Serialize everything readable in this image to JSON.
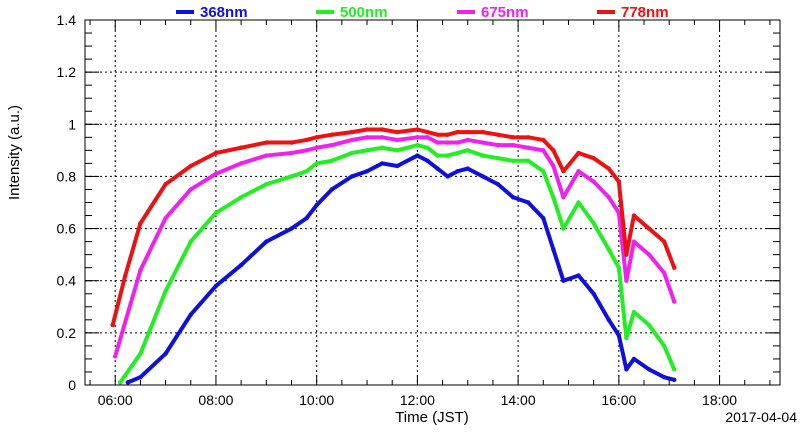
{
  "chart_data": {
    "type": "scatter",
    "xlabel": "Time (JST)",
    "ylabel": "Intensity (a.u.)",
    "date_label": "2017-04-04",
    "xlim": [
      5.4,
      19.2
    ],
    "ylim": [
      0,
      1.4
    ],
    "x_ticks": [
      "06:00",
      "08:00",
      "10:00",
      "12:00",
      "14:00",
      "16:00",
      "18:00"
    ],
    "y_ticks": [
      "0",
      "0.2",
      "0.4",
      "0.6",
      "0.8",
      "1",
      "1.2",
      "1.4"
    ],
    "grid": true,
    "legend_position": "top",
    "series": [
      {
        "name": "368nm",
        "color": "#1010dd",
        "x": [
          6.25,
          6.5,
          7.0,
          7.5,
          8.0,
          8.5,
          9.0,
          9.5,
          9.8,
          10.0,
          10.3,
          10.7,
          11.0,
          11.3,
          11.6,
          12.0,
          12.2,
          12.4,
          12.6,
          12.8,
          13.0,
          13.3,
          13.6,
          13.9,
          14.2,
          14.5,
          14.7,
          14.9,
          15.2,
          15.5,
          15.8,
          16.0,
          16.15,
          16.3,
          16.6,
          16.9,
          17.1
        ],
        "y": [
          0.01,
          0.03,
          0.12,
          0.27,
          0.38,
          0.46,
          0.55,
          0.6,
          0.64,
          0.69,
          0.75,
          0.8,
          0.82,
          0.85,
          0.84,
          0.88,
          0.86,
          0.83,
          0.8,
          0.82,
          0.83,
          0.8,
          0.77,
          0.72,
          0.7,
          0.64,
          0.52,
          0.4,
          0.42,
          0.35,
          0.25,
          0.19,
          0.06,
          0.1,
          0.06,
          0.03,
          0.02
        ]
      },
      {
        "name": "500nm",
        "color": "#22ee22",
        "x": [
          6.1,
          6.5,
          7.0,
          7.5,
          8.0,
          8.5,
          9.0,
          9.5,
          9.8,
          10.0,
          10.3,
          10.7,
          11.0,
          11.3,
          11.6,
          12.0,
          12.2,
          12.4,
          12.6,
          12.8,
          13.0,
          13.3,
          13.6,
          13.9,
          14.2,
          14.5,
          14.7,
          14.9,
          15.2,
          15.5,
          15.8,
          16.0,
          16.15,
          16.3,
          16.6,
          16.9,
          17.1
        ],
        "y": [
          0.01,
          0.12,
          0.36,
          0.55,
          0.66,
          0.72,
          0.77,
          0.8,
          0.82,
          0.85,
          0.86,
          0.89,
          0.9,
          0.91,
          0.9,
          0.92,
          0.91,
          0.88,
          0.88,
          0.89,
          0.9,
          0.88,
          0.87,
          0.86,
          0.86,
          0.82,
          0.72,
          0.6,
          0.7,
          0.62,
          0.52,
          0.45,
          0.18,
          0.28,
          0.23,
          0.15,
          0.06
        ]
      },
      {
        "name": "675nm",
        "color": "#ee22ee",
        "x": [
          6.0,
          6.5,
          7.0,
          7.5,
          8.0,
          8.5,
          9.0,
          9.5,
          9.8,
          10.0,
          10.3,
          10.7,
          11.0,
          11.3,
          11.6,
          12.0,
          12.2,
          12.4,
          12.6,
          12.8,
          13.0,
          13.3,
          13.6,
          13.9,
          14.2,
          14.5,
          14.7,
          14.9,
          15.2,
          15.5,
          15.8,
          16.0,
          16.15,
          16.3,
          16.6,
          16.9,
          17.1
        ],
        "y": [
          0.11,
          0.44,
          0.64,
          0.75,
          0.81,
          0.85,
          0.88,
          0.89,
          0.9,
          0.91,
          0.92,
          0.94,
          0.95,
          0.95,
          0.94,
          0.95,
          0.95,
          0.93,
          0.93,
          0.93,
          0.94,
          0.93,
          0.92,
          0.92,
          0.91,
          0.9,
          0.84,
          0.72,
          0.82,
          0.78,
          0.72,
          0.66,
          0.4,
          0.55,
          0.5,
          0.43,
          0.32
        ]
      },
      {
        "name": "778nm",
        "color": "#ee1111",
        "x": [
          5.95,
          6.2,
          6.5,
          7.0,
          7.5,
          8.0,
          8.5,
          9.0,
          9.5,
          9.8,
          10.0,
          10.3,
          10.7,
          11.0,
          11.3,
          11.6,
          12.0,
          12.2,
          12.4,
          12.6,
          12.8,
          13.0,
          13.3,
          13.6,
          13.9,
          14.2,
          14.5,
          14.7,
          14.9,
          15.2,
          15.5,
          15.8,
          16.0,
          16.15,
          16.3,
          16.6,
          16.9,
          17.1
        ],
        "y": [
          0.23,
          0.42,
          0.62,
          0.77,
          0.84,
          0.89,
          0.91,
          0.93,
          0.93,
          0.94,
          0.95,
          0.96,
          0.97,
          0.98,
          0.98,
          0.97,
          0.98,
          0.97,
          0.96,
          0.96,
          0.97,
          0.97,
          0.97,
          0.96,
          0.95,
          0.95,
          0.94,
          0.9,
          0.82,
          0.89,
          0.87,
          0.83,
          0.78,
          0.5,
          0.65,
          0.6,
          0.55,
          0.45
        ]
      }
    ]
  }
}
